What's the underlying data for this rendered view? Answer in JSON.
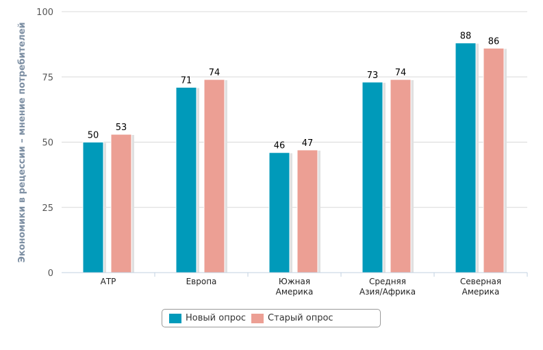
{
  "chart_data": {
    "type": "bar",
    "title": "",
    "xlabel": "",
    "ylabel": "Экономики в рецессии – мнение потребителей",
    "ylim": [
      0,
      100
    ],
    "yticks": [
      0,
      25,
      50,
      75,
      100
    ],
    "grid": true,
    "legend_position": "bottom",
    "categories": [
      [
        "АТР"
      ],
      [
        "Европа"
      ],
      [
        "Южная",
        "Америка"
      ],
      [
        "Средняя",
        "Азия/Африка"
      ],
      [
        "Северная",
        "Америка"
      ]
    ],
    "series": [
      {
        "name": "Новый опрос",
        "color": "#009aba",
        "values": [
          50,
          71,
          46,
          73,
          88
        ]
      },
      {
        "name": "Старый опрос",
        "color": "#ec9f94",
        "values": [
          53,
          74,
          47,
          74,
          86
        ]
      }
    ]
  }
}
